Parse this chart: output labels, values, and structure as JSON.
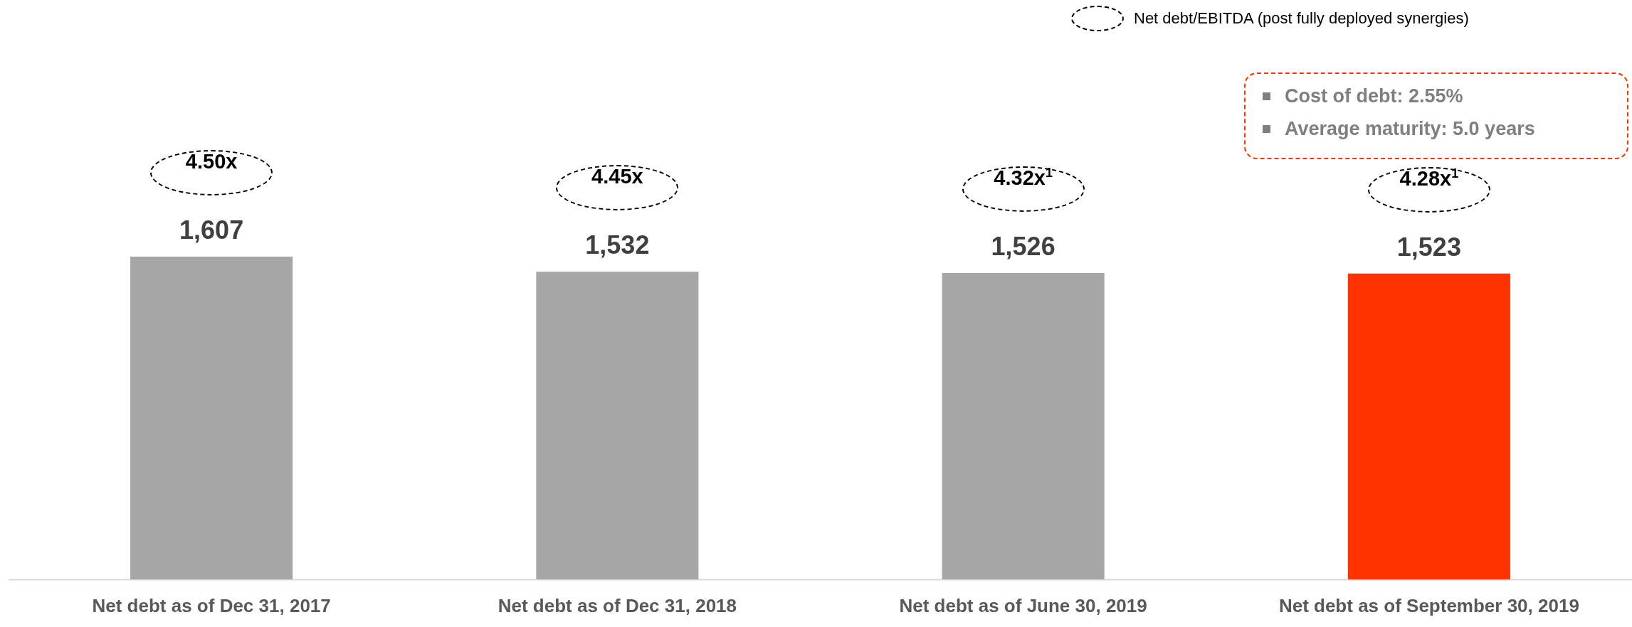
{
  "chart_data": {
    "type": "bar",
    "categories": [
      "Net debt as of Dec 31, 2017",
      "Net debt as of Dec 31, 2018",
      "Net debt as of June 30, 2019",
      "Net debt as of September 30, 2019"
    ],
    "values": [
      1607,
      1532,
      1526,
      1523
    ],
    "colors": [
      "#a6a6a6",
      "#a6a6a6",
      "#a6a6a6",
      "#ff3300"
    ],
    "value_labels": [
      "1,607",
      "1,532",
      "1,526",
      "1,523"
    ],
    "annotations": [
      "4.50x",
      "4.45x",
      "4.32x$^{1}$",
      "4.28x$^{1}$",
      "Net debt/EBITDA (post fully deployed synergies)",
      "Cost of debt: 2.55%",
      "Average maturity: 5.0 years"
    ]
  }
}
